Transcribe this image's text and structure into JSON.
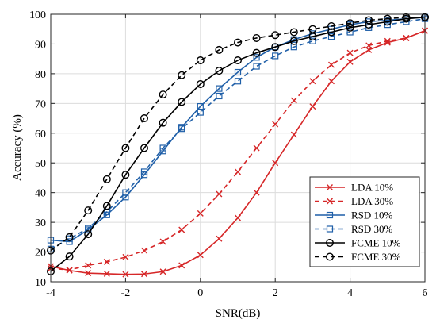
{
  "chart_data": {
    "type": "line",
    "title": "",
    "xlabel": "SNR(dB)",
    "ylabel": "Accuracy (%)",
    "xlim": [
      -4,
      6
    ],
    "ylim": [
      10,
      100
    ],
    "xticks": [
      -4,
      -2,
      0,
      2,
      4,
      6
    ],
    "yticks": [
      10,
      20,
      30,
      40,
      50,
      60,
      70,
      80,
      90,
      100
    ],
    "grid": true,
    "legend_position": "bottom-right",
    "x": [
      -4,
      -3.5,
      -3,
      -2.5,
      -2,
      -1.5,
      -1,
      -0.5,
      0,
      0.5,
      1,
      1.5,
      2,
      2.5,
      3,
      3.5,
      4,
      4.5,
      5,
      5.5,
      6
    ],
    "series": [
      {
        "name": "LDA 10%",
        "color": "#d62728",
        "dash": "solid",
        "marker": "x",
        "values": [
          15.2,
          13.8,
          12.9,
          12.7,
          12.5,
          12.6,
          13.4,
          15.5,
          19.0,
          24.5,
          31.5,
          40.0,
          50.0,
          59.5,
          69.0,
          77.5,
          84.0,
          88.0,
          90.5,
          92.0,
          94.5
        ]
      },
      {
        "name": "LDA 30%",
        "color": "#d62728",
        "dash": "dashed",
        "marker": "x",
        "values": [
          14.5,
          14.0,
          15.5,
          16.7,
          18.3,
          20.5,
          23.5,
          27.5,
          33.0,
          39.5,
          47.0,
          55.0,
          63.0,
          71.0,
          77.5,
          83.0,
          87.0,
          89.5,
          91.0,
          92.0,
          94.5
        ]
      },
      {
        "name": "RSD 10%",
        "color": "#1f5fa8",
        "dash": "solid",
        "marker": "square",
        "values": [
          24.0,
          23.5,
          27.5,
          32.5,
          38.5,
          46.0,
          54.0,
          62.0,
          69.0,
          75.0,
          80.5,
          85.5,
          89.0,
          91.5,
          93.5,
          95.0,
          96.5,
          97.5,
          98.0,
          98.5,
          99.0
        ]
      },
      {
        "name": "RSD 30%",
        "color": "#1f5fa8",
        "dash": "dashed",
        "marker": "square",
        "values": [
          21.0,
          24.5,
          28.0,
          33.5,
          40.0,
          47.0,
          55.0,
          61.5,
          67.0,
          72.5,
          77.5,
          82.5,
          86.0,
          89.0,
          91.0,
          92.5,
          94.0,
          95.5,
          96.5,
          97.5,
          98.5
        ]
      },
      {
        "name": "FCME 10%",
        "color": "#000000",
        "dash": "solid",
        "marker": "circle",
        "values": [
          13.5,
          18.5,
          26.0,
          35.5,
          46.0,
          55.0,
          63.5,
          70.5,
          76.5,
          81.0,
          84.5,
          87.0,
          89.0,
          91.0,
          92.5,
          94.0,
          95.5,
          96.5,
          97.5,
          98.5,
          99.0
        ]
      },
      {
        "name": "FCME 30%",
        "color": "#000000",
        "dash": "dashed",
        "marker": "circle",
        "values": [
          20.5,
          25.0,
          34.0,
          44.5,
          55.0,
          65.0,
          73.0,
          79.5,
          84.5,
          88.0,
          90.5,
          92.0,
          93.0,
          94.0,
          95.0,
          96.0,
          97.0,
          98.0,
          98.5,
          99.0,
          99.0
        ]
      }
    ]
  }
}
